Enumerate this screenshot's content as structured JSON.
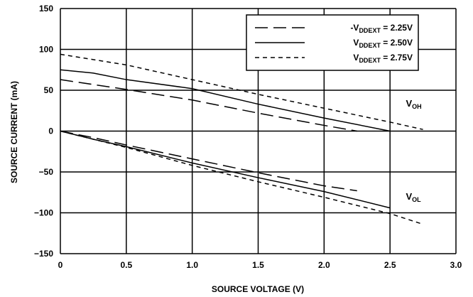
{
  "chart_data": {
    "type": "line",
    "xlabel": "SOURCE VOLTAGE (V)",
    "ylabel": "SOURCE CURRENT (mA)",
    "xlim": [
      0,
      3.0
    ],
    "ylim": [
      -150,
      150
    ],
    "xticks": [
      "0",
      "0.5",
      "1.0",
      "1.5",
      "2.0",
      "2.5",
      "3.0"
    ],
    "yticks": [
      "150",
      "100",
      "50",
      "0",
      "-50",
      "-100",
      "-150"
    ],
    "grid": true,
    "legend_position": "top-right",
    "series": [
      {
        "name": "VDDEXT = 2.25V",
        "legend": {
          "prefix": "-V",
          "sub": "DDEXT",
          "suffix": " = 2.25V"
        },
        "dash": "long-dash",
        "oh": {
          "x": [
            0,
            0.25,
            0.5,
            1.0,
            1.5,
            2.0,
            2.25
          ],
          "y": [
            63,
            57,
            51,
            38,
            22,
            7,
            0
          ]
        },
        "ol": {
          "x": [
            0,
            0.25,
            0.5,
            1.0,
            1.5,
            2.0,
            2.25
          ],
          "y": [
            0,
            -8,
            -17,
            -34,
            -51,
            -67,
            -73
          ]
        }
      },
      {
        "name": "VDDEXT = 2.50V",
        "legend": {
          "prefix": "V",
          "sub": "DDEXT",
          "suffix": " = 2.50V"
        },
        "dash": "solid",
        "oh": {
          "x": [
            0,
            0.25,
            0.5,
            1.0,
            1.5,
            2.0,
            2.5
          ],
          "y": [
            75,
            71,
            63,
            52,
            33,
            16,
            0
          ]
        },
        "ol": {
          "x": [
            0,
            0.25,
            0.5,
            1.0,
            1.5,
            2.0,
            2.5
          ],
          "y": [
            0,
            -10,
            -19,
            -39,
            -57,
            -74,
            -94
          ]
        }
      },
      {
        "name": "VDDEXT = 2.75V",
        "legend": {
          "prefix": "V",
          "sub": "DDEXT",
          "suffix": " = 2.75V"
        },
        "dash": "short-dash",
        "oh": {
          "x": [
            0,
            0.5,
            1.0,
            1.5,
            2.0,
            2.5,
            2.75
          ],
          "y": [
            94,
            81,
            63,
            45,
            28,
            11,
            2
          ]
        },
        "ol": {
          "x": [
            0,
            0.5,
            1.0,
            1.5,
            2.0,
            2.5,
            2.75
          ],
          "y": [
            0,
            -20,
            -42,
            -62,
            -81,
            -101,
            -114
          ]
        }
      }
    ],
    "annotations": [
      {
        "main": "V",
        "sub": "OH",
        "x": 2.62,
        "y": 30
      },
      {
        "main": "V",
        "sub": "OL",
        "x": 2.62,
        "y": -84
      }
    ]
  }
}
